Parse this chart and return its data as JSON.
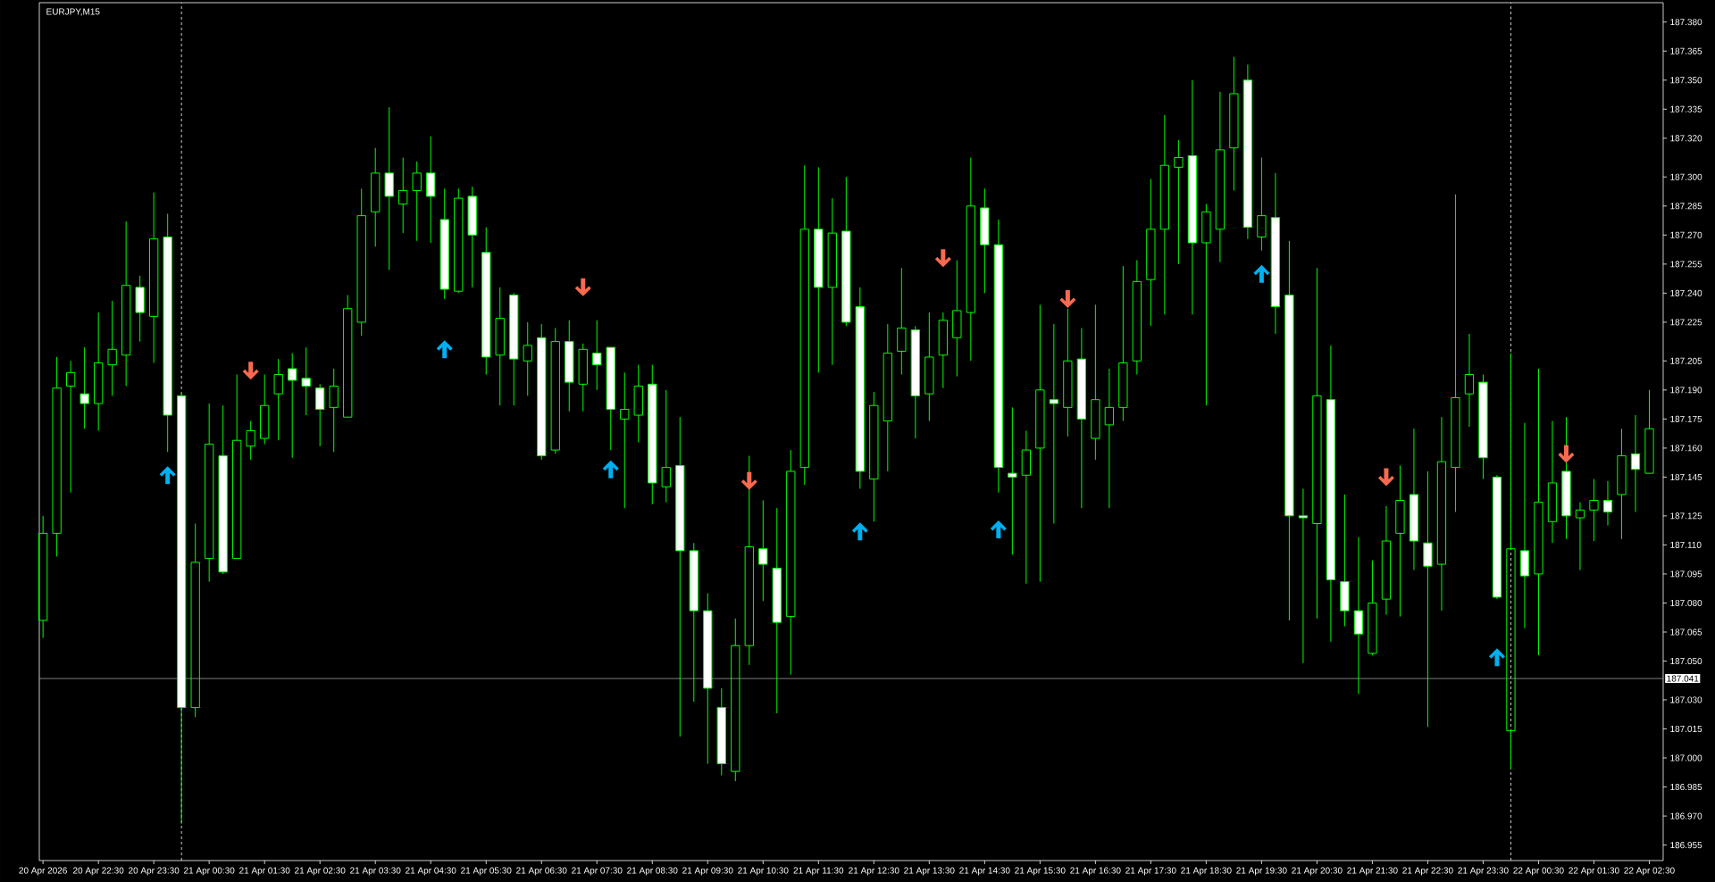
{
  "chart_data": {
    "type": "candlestick",
    "title": "EURJPY,M15",
    "color": "#00ff00",
    "colors": [
      "#00ff00",
      "#00ff00",
      "#00ff00",
      "#ffffff",
      "#00ff00",
      "#00ff00",
      "#00ff00",
      "#ffffff",
      "#00ff00",
      "#ffffff",
      "#ffffff",
      "#00ff00",
      "#00ff00",
      "#ffffff",
      "#00ff00",
      "#00ff00",
      "#00ff00",
      "#00ff00",
      "#ffffff",
      "#ffffff",
      "#ffffff",
      "#00ff00",
      "#00ff00",
      "#00ff00",
      "#00ff00",
      "#ffffff",
      "#00ff00",
      "#00ff00",
      "#ffffff",
      "#ffffff",
      "#00ff00",
      "#ffffff",
      "#ffffff",
      "#00ff00",
      "#ffffff",
      "#00ff00",
      "#ffffff",
      "#00ff00",
      "#ffffff",
      "#00ff00",
      "#ffffff",
      "#ffffff",
      "#00ff00",
      "#00ff00",
      "#ffffff",
      "#00ff00",
      "#ffffff",
      "#ffffff",
      "#ffffff",
      "#ffffff",
      "#00ff00",
      "#00ff00",
      "#ffffff",
      "#ffffff",
      "#00ff00",
      "#00ff00",
      "#ffffff",
      "#00ff00",
      "#ffffff",
      "#ffffff",
      "#00ff00",
      "#00ff00",
      "#00ff00",
      "#ffffff",
      "#00ff00",
      "#00ff00",
      "#00ff00",
      "#00ff00",
      "#ffffff",
      "#ffffff",
      "#ffffff",
      "#00ff00",
      "#00ff00",
      "#ffffff",
      "#00ff00",
      "#ffffff",
      "#00ff00",
      "#00ff00",
      "#00ff00",
      "#00ff00",
      "#00ff00",
      "#00ff00",
      "#00ff00",
      "#ffffff",
      "#00ff00",
      "#00ff00",
      "#00ff00",
      "#ffffff",
      "#00ff00",
      "#ffffff",
      "#ffffff",
      "#ffffff",
      "#00ff00",
      "#ffffff",
      "#ffffff",
      "#ffffff",
      "#00ff00",
      "#00ff00",
      "#00ff00",
      "#ffffff",
      "#ffffff",
      "#00ff00",
      "#00ff00",
      "#00ff00",
      "#ffffff",
      "#ffffff",
      "#00ff00",
      "#ffffff",
      "#00ff00",
      "#00ff00",
      "#ffffff",
      "#00ff00",
      "#00ff00",
      "#ffffff",
      "#00ff00",
      "#ffffff",
      "#00ff00"
    ],
    "x": [
      "2026-04-20T21:30",
      "2026-04-20T21:45",
      "2026-04-20T22:00",
      "2026-04-20T22:15",
      "2026-04-20T22:30",
      "2026-04-20T22:45",
      "2026-04-20T23:00",
      "2026-04-20T23:15",
      "2026-04-20T23:30",
      "2026-04-20T23:45",
      "2026-04-21T00:00",
      "2026-04-21T00:15",
      "2026-04-21T00:30",
      "2026-04-21T00:45",
      "2026-04-21T01:00",
      "2026-04-21T01:15",
      "2026-04-21T01:30",
      "2026-04-21T01:45",
      "2026-04-21T02:00",
      "2026-04-21T02:15",
      "2026-04-21T02:30",
      "2026-04-21T02:45",
      "2026-04-21T03:00",
      "2026-04-21T03:15",
      "2026-04-21T03:30",
      "2026-04-21T03:45",
      "2026-04-21T04:00",
      "2026-04-21T04:15",
      "2026-04-21T04:30",
      "2026-04-21T04:45",
      "2026-04-21T05:00",
      "2026-04-21T05:15",
      "2026-04-21T05:30",
      "2026-04-21T05:45",
      "2026-04-21T06:00",
      "2026-04-21T06:15",
      "2026-04-21T06:30",
      "2026-04-21T06:45",
      "2026-04-21T07:00",
      "2026-04-21T07:15",
      "2026-04-21T07:30",
      "2026-04-21T07:45",
      "2026-04-21T08:00",
      "2026-04-21T08:15",
      "2026-04-21T08:30",
      "2026-04-21T08:45",
      "2026-04-21T09:00",
      "2026-04-21T09:15",
      "2026-04-21T09:30",
      "2026-04-21T09:45",
      "2026-04-21T10:00",
      "2026-04-21T10:15",
      "2026-04-21T10:30",
      "2026-04-21T10:45",
      "2026-04-21T11:00",
      "2026-04-21T11:15",
      "2026-04-21T11:30",
      "2026-04-21T11:45",
      "2026-04-21T12:00",
      "2026-04-21T12:15",
      "2026-04-21T12:30",
      "2026-04-21T12:45",
      "2026-04-21T13:00",
      "2026-04-21T13:15",
      "2026-04-21T13:30",
      "2026-04-21T13:45",
      "2026-04-21T14:00",
      "2026-04-21T14:15",
      "2026-04-21T14:30",
      "2026-04-21T14:45",
      "2026-04-21T15:00",
      "2026-04-21T15:15",
      "2026-04-21T15:30",
      "2026-04-21T15:45",
      "2026-04-21T16:00",
      "2026-04-21T16:15",
      "2026-04-21T16:30",
      "2026-04-21T16:45",
      "2026-04-21T17:00",
      "2026-04-21T17:15",
      "2026-04-21T17:30",
      "2026-04-21T17:45",
      "2026-04-21T18:00",
      "2026-04-21T18:15",
      "2026-04-21T18:30",
      "2026-04-21T18:45",
      "2026-04-21T19:00",
      "2026-04-21T19:15",
      "2026-04-21T19:30",
      "2026-04-21T19:45",
      "2026-04-21T20:00",
      "2026-04-21T20:15",
      "2026-04-21T20:30",
      "2026-04-21T20:45",
      "2026-04-21T21:00",
      "2026-04-21T21:15",
      "2026-04-21T21:30",
      "2026-04-21T21:45",
      "2026-04-21T22:00",
      "2026-04-21T22:15",
      "2026-04-21T22:30",
      "2026-04-21T22:45",
      "2026-04-21T23:00",
      "2026-04-21T23:15",
      "2026-04-21T23:30",
      "2026-04-21T23:45",
      "2026-04-22T00:00",
      "2026-04-22T00:15",
      "2026-04-22T00:30",
      "2026-04-22T00:45",
      "2026-04-22T01:00",
      "2026-04-22T01:15",
      "2026-04-22T01:30",
      "2026-04-22T01:45",
      "2026-04-22T02:00",
      "2026-04-22T02:15",
      "2026-04-22T02:30"
    ],
    "ohlc": [
      [
        187.071,
        187.125,
        187.062,
        187.116
      ],
      [
        187.116,
        187.207,
        187.104,
        187.191
      ],
      [
        187.192,
        187.205,
        187.137,
        187.199
      ],
      [
        187.188,
        187.212,
        187.17,
        187.183
      ],
      [
        187.183,
        187.23,
        187.169,
        187.204
      ],
      [
        187.203,
        187.236,
        187.187,
        187.211
      ],
      [
        187.208,
        187.277,
        187.192,
        187.244
      ],
      [
        187.243,
        187.249,
        187.215,
        187.23
      ],
      [
        187.228,
        187.292,
        187.204,
        187.268
      ],
      [
        187.269,
        187.281,
        187.158,
        187.177
      ],
      [
        187.187,
        187.188,
        186.966,
        187.026
      ],
      [
        187.026,
        187.121,
        187.021,
        187.101
      ],
      [
        187.103,
        187.183,
        187.091,
        187.162
      ],
      [
        187.156,
        187.182,
        187.095,
        187.096
      ],
      [
        187.103,
        187.198,
        187.103,
        187.164
      ],
      [
        187.161,
        187.174,
        187.154,
        187.169
      ],
      [
        187.165,
        187.198,
        187.162,
        187.182
      ],
      [
        187.188,
        187.206,
        187.164,
        187.198
      ],
      [
        187.201,
        187.209,
        187.155,
        187.195
      ],
      [
        187.196,
        187.212,
        187.177,
        187.192
      ],
      [
        187.191,
        187.193,
        187.161,
        187.18
      ],
      [
        187.181,
        187.201,
        187.158,
        187.192
      ],
      [
        187.176,
        187.239,
        187.176,
        187.232
      ],
      [
        187.225,
        187.294,
        187.218,
        187.28
      ],
      [
        187.282,
        187.315,
        187.264,
        187.302
      ],
      [
        187.302,
        187.336,
        187.252,
        187.29
      ],
      [
        187.286,
        187.31,
        187.271,
        187.293
      ],
      [
        187.293,
        187.308,
        187.267,
        187.302
      ],
      [
        187.302,
        187.321,
        187.266,
        187.29
      ],
      [
        187.278,
        187.294,
        187.237,
        187.242
      ],
      [
        187.241,
        187.294,
        187.24,
        187.289
      ],
      [
        187.29,
        187.295,
        187.243,
        187.27
      ],
      [
        187.261,
        187.274,
        187.198,
        187.207
      ],
      [
        187.208,
        187.243,
        187.182,
        187.227
      ],
      [
        187.239,
        187.24,
        187.182,
        187.206
      ],
      [
        187.205,
        187.225,
        187.187,
        187.213
      ],
      [
        187.217,
        187.224,
        187.154,
        187.156
      ],
      [
        187.159,
        187.222,
        187.157,
        187.215
      ],
      [
        187.215,
        187.226,
        187.179,
        187.194
      ],
      [
        187.193,
        187.214,
        187.179,
        187.211
      ],
      [
        187.209,
        187.226,
        187.19,
        187.203
      ],
      [
        187.212,
        187.212,
        187.159,
        187.18
      ],
      [
        187.175,
        187.199,
        187.129,
        187.18
      ],
      [
        187.177,
        187.203,
        187.163,
        187.192
      ],
      [
        187.193,
        187.203,
        187.131,
        187.142
      ],
      [
        187.14,
        187.19,
        187.132,
        187.15
      ],
      [
        187.151,
        187.176,
        187.011,
        187.107
      ],
      [
        187.107,
        187.111,
        187.029,
        187.076
      ],
      [
        187.076,
        187.085,
        186.997,
        187.036
      ],
      [
        187.026,
        187.036,
        186.991,
        186.997
      ],
      [
        186.993,
        187.072,
        186.988,
        187.058
      ],
      [
        187.058,
        187.156,
        187.048,
        187.109
      ],
      [
        187.108,
        187.133,
        187.081,
        187.1
      ],
      [
        187.098,
        187.129,
        187.023,
        187.07
      ],
      [
        187.073,
        187.159,
        187.043,
        187.148
      ],
      [
        187.15,
        187.306,
        187.141,
        187.273
      ],
      [
        187.273,
        187.305,
        187.199,
        187.243
      ],
      [
        187.243,
        187.289,
        187.203,
        187.271
      ],
      [
        187.272,
        187.3,
        187.223,
        187.225
      ],
      [
        187.233,
        187.243,
        187.139,
        187.148
      ],
      [
        187.144,
        187.189,
        187.122,
        187.182
      ],
      [
        187.174,
        187.224,
        187.148,
        187.209
      ],
      [
        187.21,
        187.253,
        187.198,
        187.222
      ],
      [
        187.221,
        187.223,
        187.165,
        187.187
      ],
      [
        187.188,
        187.23,
        187.174,
        187.207
      ],
      [
        187.208,
        187.23,
        187.191,
        187.226
      ],
      [
        187.217,
        187.257,
        187.197,
        187.231
      ],
      [
        187.23,
        187.31,
        187.205,
        187.285
      ],
      [
        187.284,
        187.294,
        187.24,
        187.265
      ],
      [
        187.265,
        187.278,
        187.137,
        187.15
      ],
      [
        187.147,
        187.181,
        187.105,
        187.145
      ],
      [
        187.146,
        187.169,
        187.09,
        187.159
      ],
      [
        187.16,
        187.234,
        187.091,
        187.19
      ],
      [
        187.185,
        187.224,
        187.121,
        187.183
      ],
      [
        187.181,
        187.232,
        187.166,
        187.205
      ],
      [
        187.206,
        187.222,
        187.129,
        187.175
      ],
      [
        187.165,
        187.234,
        187.154,
        187.185
      ],
      [
        187.172,
        187.201,
        187.129,
        187.181
      ],
      [
        187.181,
        187.254,
        187.174,
        187.204
      ],
      [
        187.205,
        187.257,
        187.198,
        187.246
      ],
      [
        187.247,
        187.299,
        187.223,
        187.273
      ],
      [
        187.273,
        187.332,
        187.229,
        187.306
      ],
      [
        187.305,
        187.319,
        187.255,
        187.31
      ],
      [
        187.311,
        187.35,
        187.229,
        187.266
      ],
      [
        187.266,
        187.286,
        187.182,
        187.282
      ],
      [
        187.273,
        187.344,
        187.256,
        187.314
      ],
      [
        187.315,
        187.362,
        187.293,
        187.343
      ],
      [
        187.35,
        187.358,
        187.268,
        187.274
      ],
      [
        187.269,
        187.31,
        187.262,
        187.28
      ],
      [
        187.279,
        187.302,
        187.219,
        187.233
      ],
      [
        187.239,
        187.267,
        187.071,
        187.125
      ],
      [
        187.125,
        187.139,
        187.049,
        187.124
      ],
      [
        187.121,
        187.253,
        187.072,
        187.187
      ],
      [
        187.185,
        187.213,
        187.06,
        187.092
      ],
      [
        187.091,
        187.136,
        187.068,
        187.076
      ],
      [
        187.076,
        187.114,
        187.033,
        187.064
      ],
      [
        187.054,
        187.102,
        187.053,
        187.08
      ],
      [
        187.082,
        187.13,
        187.074,
        187.112
      ],
      [
        187.116,
        187.151,
        187.073,
        187.133
      ],
      [
        187.136,
        187.17,
        187.097,
        187.112
      ],
      [
        187.111,
        187.148,
        187.016,
        187.099
      ],
      [
        187.1,
        187.176,
        187.076,
        187.153
      ],
      [
        187.15,
        187.291,
        187.127,
        187.186
      ],
      [
        187.188,
        187.219,
        187.171,
        187.198
      ],
      [
        187.194,
        187.198,
        187.144,
        187.155
      ],
      [
        187.145,
        187.146,
        187.082,
        187.083
      ],
      [
        187.014,
        187.209,
        186.994,
        187.108
      ],
      [
        187.107,
        187.173,
        187.067,
        187.094
      ],
      [
        187.095,
        187.201,
        187.053,
        187.132
      ],
      [
        187.122,
        187.174,
        187.111,
        187.142
      ],
      [
        187.148,
        187.176,
        187.113,
        187.125
      ],
      [
        187.124,
        187.132,
        187.097,
        187.128
      ],
      [
        187.128,
        187.144,
        187.112,
        187.133
      ],
      [
        187.133,
        187.143,
        187.12,
        187.127
      ],
      [
        187.136,
        187.17,
        187.113,
        187.156
      ],
      [
        187.157,
        187.177,
        187.127,
        187.149
      ],
      [
        187.147,
        187.19,
        187.147,
        187.17
      ]
    ],
    "series": [
      {
        "type": "scatter",
        "color": "#00b0f0",
        "x": [
          "2026-04-20T23:45",
          "2026-04-21T04:45",
          "2026-04-21T07:45",
          "2026-04-21T12:15",
          "2026-04-21T14:45",
          "2026-04-21T19:30",
          "2026-04-21T23:45"
        ],
        "values": [
          187.146,
          187.211,
          187.149,
          187.117,
          187.118,
          187.25,
          187.052
        ]
      },
      {
        "type": "scatter",
        "color": "#f86a50",
        "x": [
          "2026-04-21T01:15",
          "2026-04-21T07:15",
          "2026-04-21T10:15",
          "2026-04-21T13:45",
          "2026-04-21T16:00",
          "2026-04-21T21:45",
          "2026-04-22T01:00"
        ],
        "values": [
          187.2,
          187.243,
          187.143,
          187.258,
          187.237,
          187.145,
          187.157
        ]
      }
    ],
    "xlim": [
      "2026-04-20T21:26",
      "2026-04-22T02:45"
    ],
    "xticks": [
      {
        "value": "2026-04-20T21:30",
        "label": "20 Apr 2026"
      },
      {
        "value": "2026-04-20T22:30",
        "label": "20 Apr 22:30"
      },
      {
        "value": "2026-04-20T23:30",
        "label": "20 Apr 23:30"
      },
      {
        "value": "2026-04-21T00:30",
        "label": "21 Apr 00:30"
      },
      {
        "value": "2026-04-21T01:30",
        "label": "21 Apr 01:30"
      },
      {
        "value": "2026-04-21T02:30",
        "label": "21 Apr 02:30"
      },
      {
        "value": "2026-04-21T03:30",
        "label": "21 Apr 03:30"
      },
      {
        "value": "2026-04-21T04:30",
        "label": "21 Apr 04:30"
      },
      {
        "value": "2026-04-21T05:30",
        "label": "21 Apr 05:30"
      },
      {
        "value": "2026-04-21T06:30",
        "label": "21 Apr 06:30"
      },
      {
        "value": "2026-04-21T07:30",
        "label": "21 Apr 07:30"
      },
      {
        "value": "2026-04-21T08:30",
        "label": "21 Apr 08:30"
      },
      {
        "value": "2026-04-21T09:30",
        "label": "21 Apr 09:30"
      },
      {
        "value": "2026-04-21T10:30",
        "label": "21 Apr 10:30"
      },
      {
        "value": "2026-04-21T11:30",
        "label": "21 Apr 11:30"
      },
      {
        "value": "2026-04-21T12:30",
        "label": "21 Apr 12:30"
      },
      {
        "value": "2026-04-21T13:30",
        "label": "21 Apr 13:30"
      },
      {
        "value": "2026-04-21T14:30",
        "label": "21 Apr 14:30"
      },
      {
        "value": "2026-04-21T15:30",
        "label": "21 Apr 15:30"
      },
      {
        "value": "2026-04-21T16:30",
        "label": "21 Apr 16:30"
      },
      {
        "value": "2026-04-21T17:30",
        "label": "21 Apr 17:30"
      },
      {
        "value": "2026-04-21T18:30",
        "label": "21 Apr 18:30"
      },
      {
        "value": "2026-04-21T19:30",
        "label": "21 Apr 19:30"
      },
      {
        "value": "2026-04-21T20:30",
        "label": "21 Apr 20:30"
      },
      {
        "value": "2026-04-21T21:30",
        "label": "21 Apr 21:30"
      },
      {
        "value": "2026-04-21T22:30",
        "label": "21 Apr 22:30"
      },
      {
        "value": "2026-04-21T23:30",
        "label": "21 Apr 23:30"
      },
      {
        "value": "2026-04-22T00:30",
        "label": "22 Apr 00:30"
      },
      {
        "value": "2026-04-22T01:30",
        "label": "22 Apr 01:30"
      },
      {
        "value": "2026-04-22T02:30",
        "label": "22 Apr 02:30"
      }
    ],
    "ylim": [
      186.947,
      187.39
    ],
    "yticks": [
      {
        "value": 187.38,
        "label": "187.380"
      },
      187.365,
      {
        "value": 187.35,
        "label": "187.350"
      },
      187.335,
      {
        "value": 187.32,
        "label": "187.320"
      },
      {
        "value": 187.3,
        "label": "187.300"
      },
      187.285,
      {
        "value": 187.27,
        "label": "187.270"
      },
      187.255,
      {
        "value": 187.24,
        "label": "187.240"
      },
      187.225,
      187.205,
      {
        "value": 187.19,
        "label": "187.190"
      },
      187.175,
      {
        "value": 187.16,
        "label": "187.160"
      },
      187.145,
      187.125,
      {
        "value": 187.11,
        "label": "187.110"
      },
      187.095,
      {
        "value": 187.08,
        "label": "187.080"
      },
      187.065,
      {
        "value": 187.05,
        "label": "187.050"
      },
      {
        "value": 187.03,
        "label": "187.030"
      },
      187.015,
      {
        "value": 187.0,
        "label": "187.000"
      },
      186.985,
      {
        "value": 186.97,
        "label": "186.970"
      },
      186.955
    ],
    "ref_lines": [
      {
        "axis": "x",
        "value": "2026-04-21T00:00",
        "color": "#ffffff",
        "line_style": "dashed"
      },
      {
        "axis": "x",
        "value": "2026-04-22T00:00",
        "color": "#ffffff",
        "line_style": "dashed"
      },
      {
        "axis": "y",
        "value": 187.041,
        "label": "187.041",
        "color": "#a0a0a0",
        "line_style": "solid"
      }
    ]
  }
}
